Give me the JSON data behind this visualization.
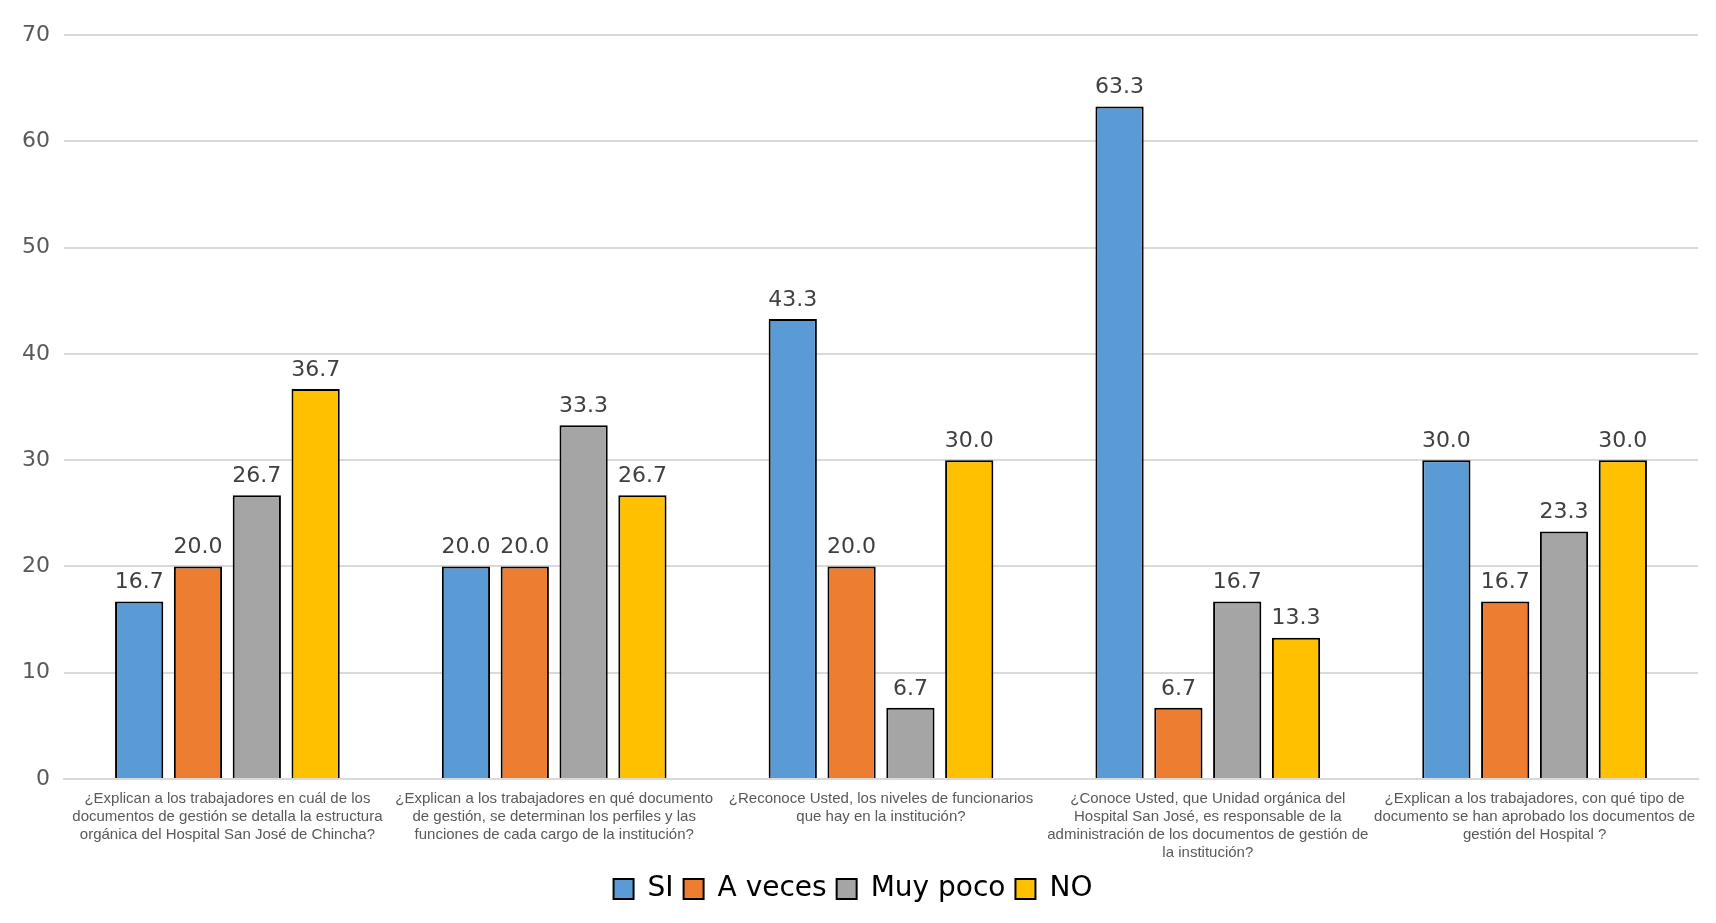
{
  "chart_data": {
    "type": "bar",
    "categories": [
      "¿Explican a los trabajadores en cuál de los documentos de gestión se detalla la estructura orgánica del Hospital San José de Chincha?",
      "¿Explican a los trabajadores en qué documento de gestión, se determinan los perfiles y las funciones de cada cargo de la institución?",
      "¿Reconoce Usted, los niveles de funcionarios que hay en la institución?",
      "¿Conoce Usted, que Unidad orgánica del Hospital San José, es responsable de la administración de los documentos de gestión de la institución?",
      "¿Explican a los trabajadores, con qué tipo de documento se han aprobado los documentos de gestión del Hospital ?"
    ],
    "series": [
      {
        "name": "SI",
        "color": "#5b9bd5",
        "values": [
          16.7,
          20.0,
          43.3,
          63.3,
          30.0
        ],
        "value_labels": [
          "16.7",
          "20.0",
          "43.3",
          "63.3",
          "30.0"
        ]
      },
      {
        "name": "A veces",
        "color": "#ed7d31",
        "values": [
          20.0,
          20.0,
          20.0,
          6.7,
          16.7
        ],
        "value_labels": [
          "20.0",
          "20.0",
          "20.0",
          "6.7",
          "16.7"
        ]
      },
      {
        "name": "Muy poco",
        "color": "#a5a5a5",
        "values": [
          26.7,
          33.3,
          6.7,
          16.7,
          23.3
        ],
        "value_labels": [
          "26.7",
          "33.3",
          "6.7",
          "16.7",
          "23.3"
        ]
      },
      {
        "name": "NO",
        "color": "#ffc000",
        "values": [
          36.7,
          26.7,
          30.0,
          13.3,
          30.0
        ],
        "value_labels": [
          "36.7",
          "26.7",
          "30.0",
          "13.3",
          "30.0"
        ]
      }
    ],
    "ylim": [
      0,
      70
    ],
    "yticks": [
      0,
      10,
      20,
      30,
      40,
      50,
      60,
      70
    ],
    "grid": "y",
    "legend": "bottom"
  }
}
